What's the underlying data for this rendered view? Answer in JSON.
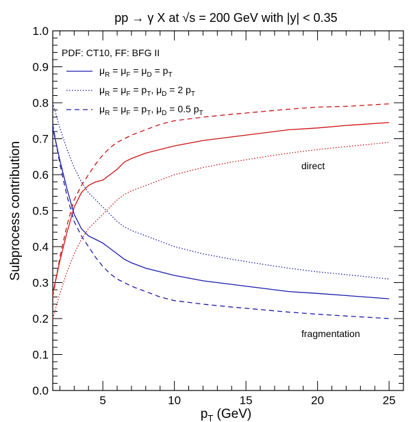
{
  "chart_data": {
    "type": "line",
    "title": "pp → γ X at √s = 200 GeV with |y| < 0.35",
    "xlabel": "p_T (GeV)",
    "ylabel": "Subprocess contribution",
    "xlim": [
      1.5,
      26
    ],
    "ylim": [
      0,
      1
    ],
    "x_ticks": [
      5,
      10,
      15,
      20,
      25
    ],
    "y_ticks": [
      0.0,
      0.1,
      0.2,
      0.3,
      0.4,
      0.5,
      0.6,
      0.7,
      0.8,
      0.9,
      1.0
    ],
    "y_tick_labels": [
      "0.0",
      "0.1",
      "0.2",
      "0.3",
      "0.4",
      "0.5",
      "0.6",
      "0.7",
      "0.8",
      "0.9",
      "1.0"
    ],
    "grid": false,
    "legend_header": "PDF: CT10, FF: BFG II",
    "legend": [
      {
        "style": "solid",
        "color": "#1a1aaa",
        "text": "μ_R = μ_F = μ_D = p_T"
      },
      {
        "style": "dotted",
        "color": "#1a1aaa",
        "text": "μ_R = μ_F = p_T, μ_D = 2 p_T"
      },
      {
        "style": "dashed",
        "color": "#1a1aaa",
        "text": "μ_R = μ_F = p_T, μ_D = 0.5 p_T"
      }
    ],
    "annotations": [
      {
        "text": "direct",
        "x": 20,
        "y": 0.58
      },
      {
        "text": "fragmentation",
        "x": 21.5,
        "y": 0.17
      }
    ],
    "series": [
      {
        "group": "direct",
        "style": "solid",
        "color": "#cc1111",
        "x": [
          1.5,
          2,
          2.5,
          3,
          3.5,
          4,
          4.5,
          5,
          5.5,
          6,
          6.5,
          7,
          8,
          9,
          10,
          12,
          14,
          16,
          18,
          20,
          22,
          25
        ],
        "y": [
          0.27,
          0.36,
          0.44,
          0.51,
          0.55,
          0.57,
          0.58,
          0.585,
          0.6,
          0.615,
          0.635,
          0.645,
          0.66,
          0.67,
          0.68,
          0.695,
          0.705,
          0.715,
          0.725,
          0.73,
          0.737,
          0.745
        ]
      },
      {
        "group": "direct",
        "style": "dotted",
        "color": "#cc1111",
        "x": [
          1.5,
          2,
          2.5,
          3,
          3.5,
          4,
          4.5,
          5,
          5.5,
          6,
          6.5,
          7,
          8,
          9,
          10,
          12,
          14,
          16,
          18,
          20,
          22,
          25
        ],
        "y": [
          0.2,
          0.27,
          0.33,
          0.38,
          0.42,
          0.45,
          0.47,
          0.49,
          0.51,
          0.53,
          0.545,
          0.555,
          0.57,
          0.585,
          0.6,
          0.62,
          0.635,
          0.648,
          0.66,
          0.67,
          0.678,
          0.69
        ]
      },
      {
        "group": "direct",
        "style": "dashed",
        "color": "#cc1111",
        "x": [
          1.5,
          2,
          2.5,
          3,
          3.5,
          4,
          4.5,
          5,
          5.5,
          6,
          6.5,
          7,
          8,
          9,
          10,
          12,
          14,
          16,
          18,
          20,
          22,
          25
        ],
        "y": [
          0.26,
          0.37,
          0.46,
          0.53,
          0.57,
          0.6,
          0.63,
          0.655,
          0.675,
          0.69,
          0.7,
          0.71,
          0.725,
          0.74,
          0.75,
          0.76,
          0.768,
          0.775,
          0.782,
          0.788,
          0.79,
          0.797
        ]
      },
      {
        "group": "fragmentation",
        "style": "solid",
        "color": "#1a1aaa",
        "x": [
          1.5,
          2,
          2.5,
          3,
          3.5,
          4,
          4.5,
          5,
          5.5,
          6,
          6.5,
          7,
          8,
          9,
          10,
          12,
          14,
          16,
          18,
          20,
          22,
          25
        ],
        "y": [
          0.73,
          0.64,
          0.56,
          0.49,
          0.45,
          0.43,
          0.42,
          0.41,
          0.395,
          0.38,
          0.365,
          0.355,
          0.34,
          0.33,
          0.32,
          0.305,
          0.295,
          0.285,
          0.275,
          0.27,
          0.264,
          0.255
        ]
      },
      {
        "group": "fragmentation",
        "style": "dotted",
        "color": "#1a1aaa",
        "x": [
          1.5,
          2,
          2.5,
          3,
          3.5,
          4,
          4.5,
          5,
          5.5,
          6,
          6.5,
          7,
          8,
          9,
          10,
          12,
          14,
          16,
          18,
          20,
          22,
          25
        ],
        "y": [
          0.8,
          0.73,
          0.67,
          0.62,
          0.58,
          0.55,
          0.53,
          0.51,
          0.49,
          0.47,
          0.455,
          0.445,
          0.43,
          0.415,
          0.4,
          0.38,
          0.365,
          0.352,
          0.34,
          0.33,
          0.322,
          0.31
        ]
      },
      {
        "group": "fragmentation",
        "style": "dashed",
        "color": "#1a1aaa",
        "x": [
          1.5,
          2,
          2.5,
          3,
          3.5,
          4,
          4.5,
          5,
          5.5,
          6,
          6.5,
          7,
          8,
          9,
          10,
          12,
          14,
          16,
          18,
          20,
          22,
          25
        ],
        "y": [
          0.74,
          0.63,
          0.54,
          0.47,
          0.43,
          0.4,
          0.37,
          0.345,
          0.325,
          0.31,
          0.3,
          0.29,
          0.275,
          0.26,
          0.25,
          0.24,
          0.232,
          0.225,
          0.218,
          0.212,
          0.207,
          0.2
        ]
      }
    ]
  }
}
